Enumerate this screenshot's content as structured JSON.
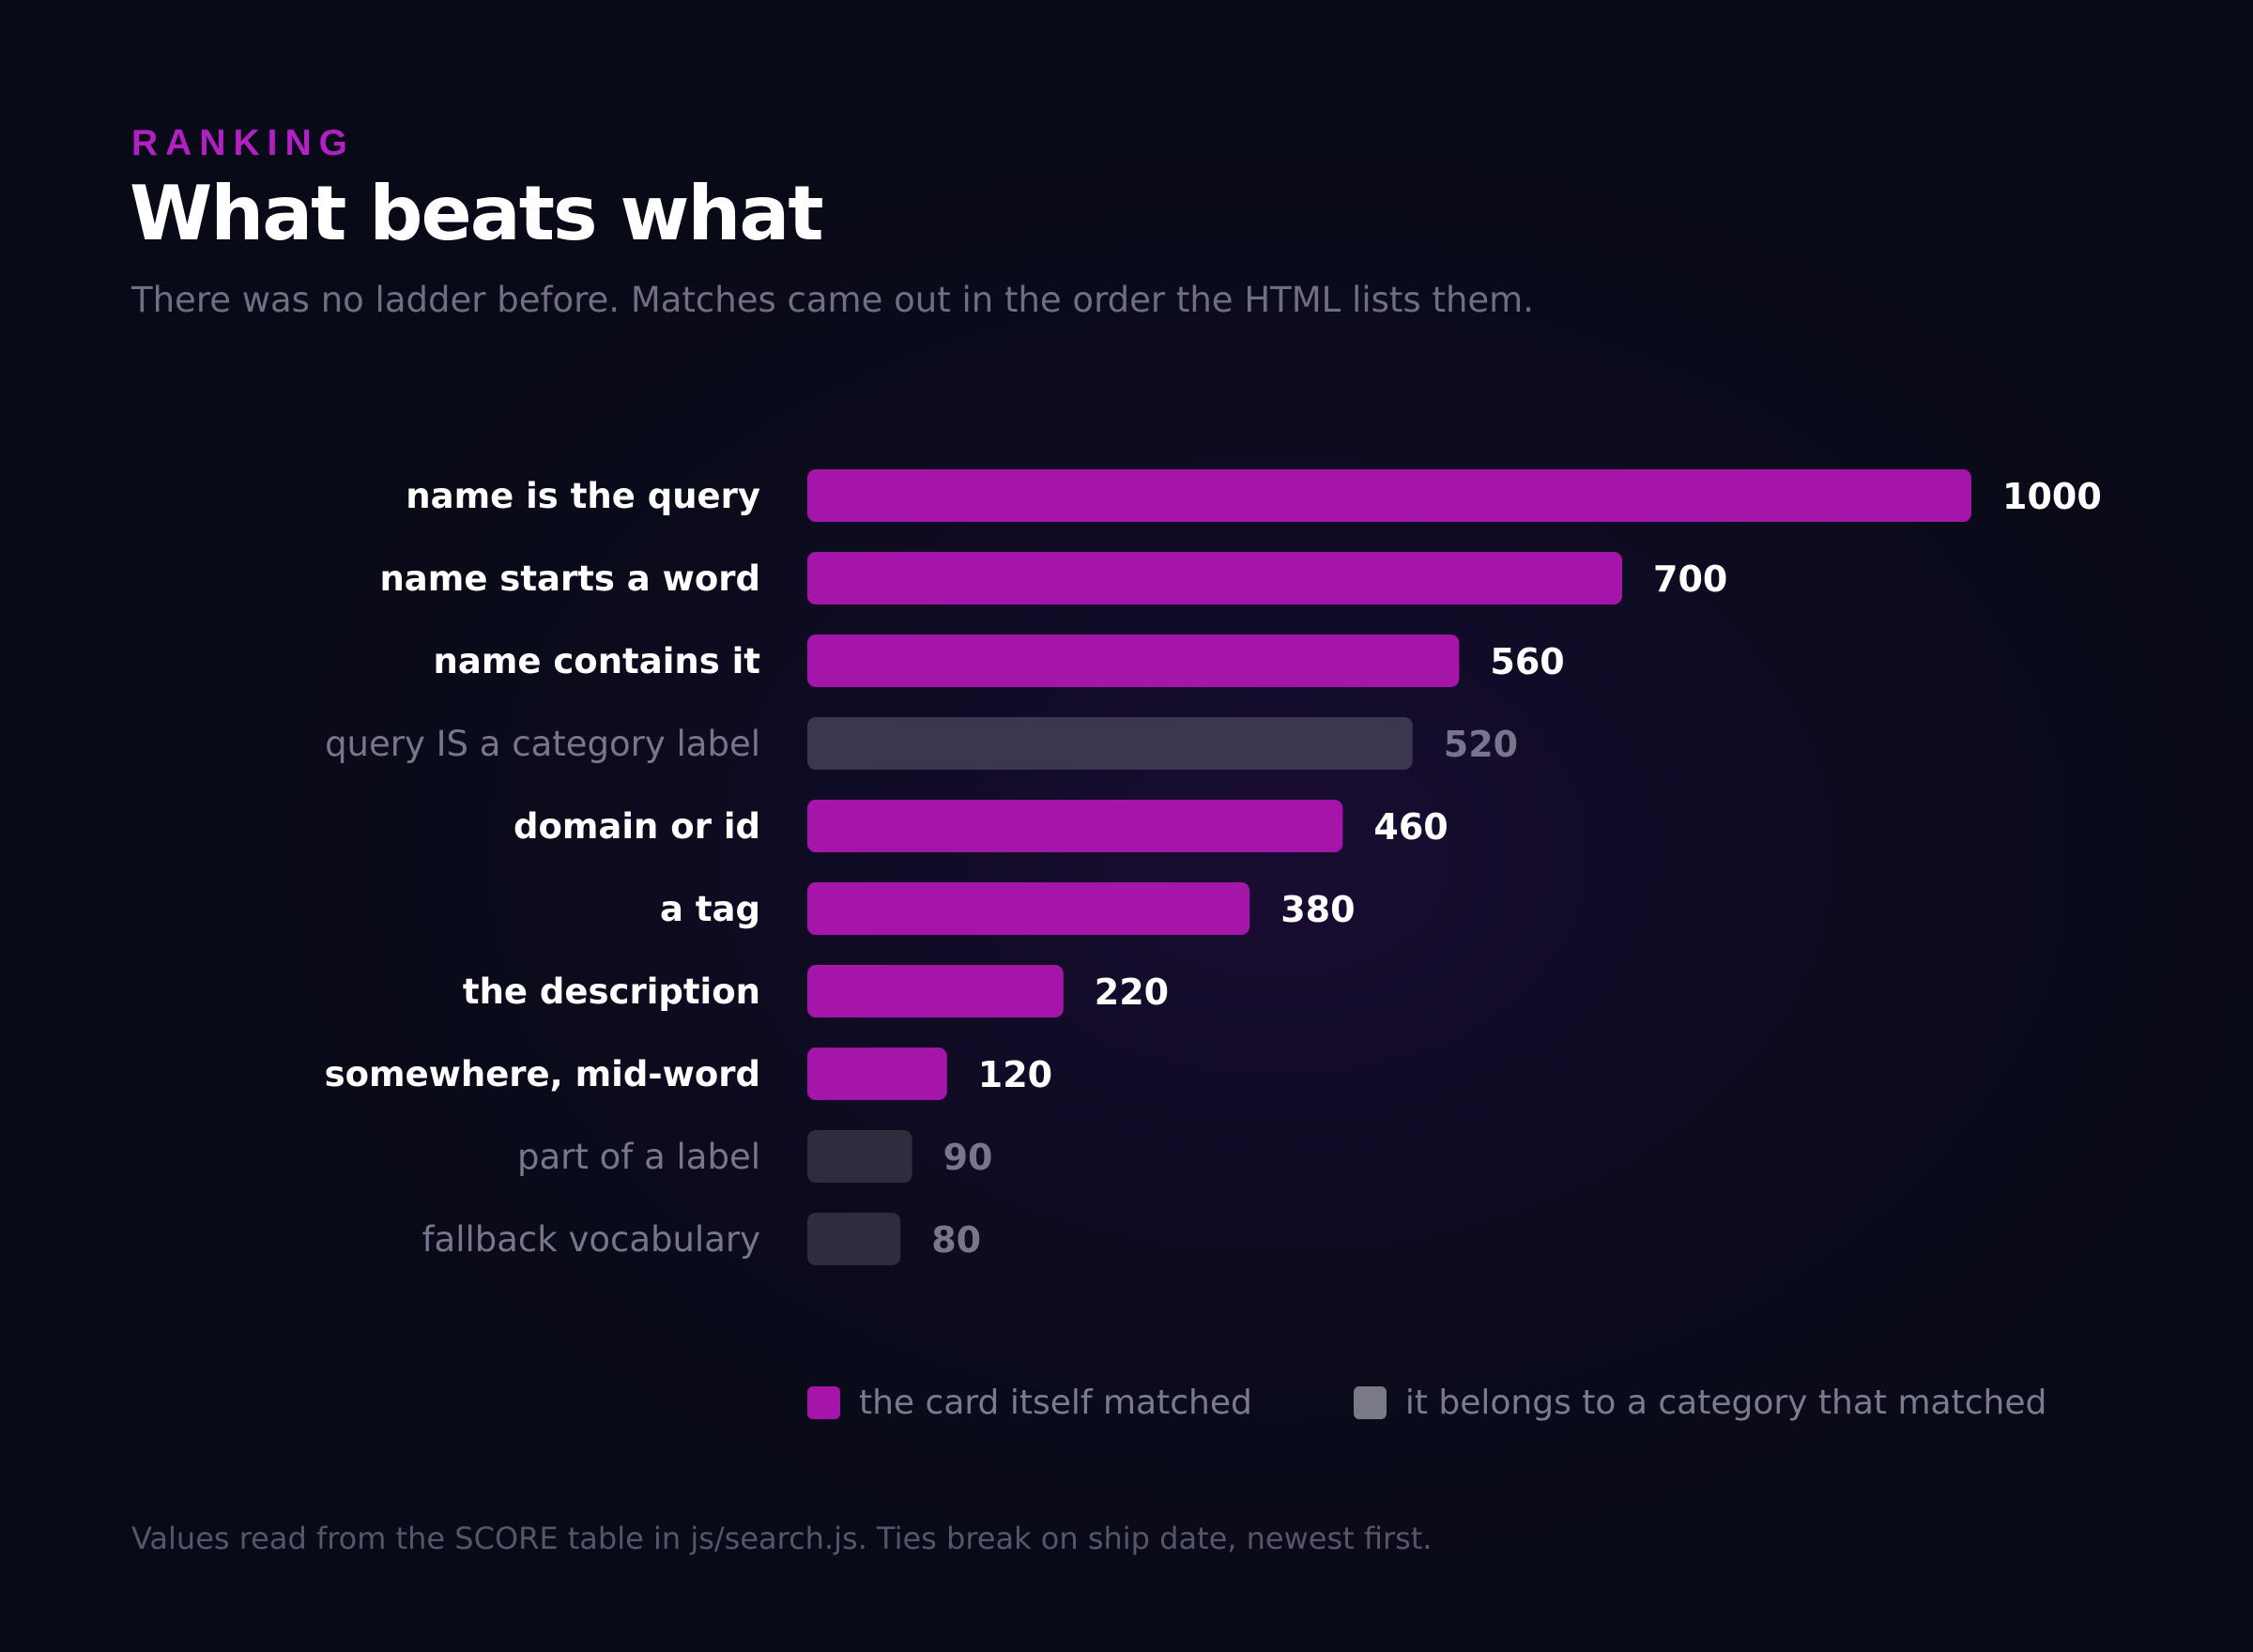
{
  "header": {
    "eyebrow": "RANKING",
    "title": "What beats what",
    "subtitle": "There was no ladder before. Matches came out in the order the HTML lists them."
  },
  "colors": {
    "direct": "#a515a9",
    "category": "#3a3851",
    "category_light": "#2e2d3e",
    "direct_label": "#ffffff",
    "category_label": "#77768c",
    "legend_category_swatch": "#7a7986"
  },
  "legend": {
    "direct": "the card itself matched",
    "category": "it belongs to a category that matched"
  },
  "footnote": "Values read from the SCORE table in js/search.js. Ties break on ship date, newest first.",
  "chart_data": {
    "type": "bar",
    "orientation": "horizontal",
    "categories": [
      "name is the query",
      "name starts a word",
      "name contains it",
      "query IS a category label",
      "domain or id",
      "a tag",
      "the description",
      "somewhere, mid-word",
      "part of a label",
      "fallback vocabulary"
    ],
    "values": [
      1000,
      700,
      560,
      520,
      460,
      380,
      220,
      120,
      90,
      80
    ],
    "groups": [
      "direct",
      "direct",
      "direct",
      "category",
      "direct",
      "direct",
      "direct",
      "direct",
      "category",
      "category"
    ],
    "xlim": [
      0,
      1000
    ],
    "grid": false,
    "legend_position": "bottom"
  }
}
